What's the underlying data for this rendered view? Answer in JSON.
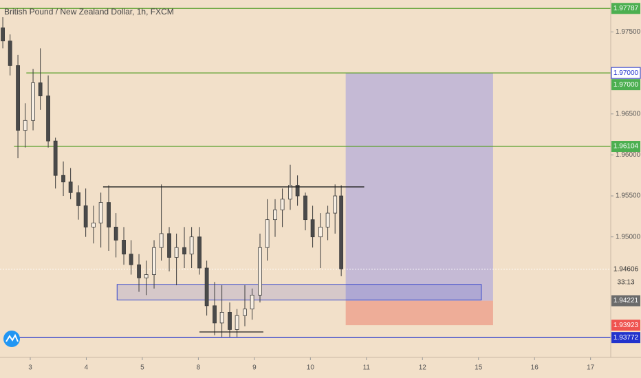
{
  "chart_data": {
    "type": "candlestick",
    "title": "British Pound / New Zealand Dollar, 1h, FXCM",
    "countdown": "33:13",
    "ylim": [
      1.9353,
      1.9789
    ],
    "xlim": [
      -0.54,
      10.36
    ],
    "yticks": [
      {
        "value": 1.975,
        "label": "1.97500"
      },
      {
        "value": 1.965,
        "label": "1.96500"
      },
      {
        "value": 1.96,
        "label": "1.96000"
      },
      {
        "value": 1.955,
        "label": "1.95500"
      },
      {
        "value": 1.95,
        "label": "1.95000"
      }
    ],
    "xticks": [
      {
        "value": 0,
        "label": "3"
      },
      {
        "value": 1,
        "label": "4"
      },
      {
        "value": 2,
        "label": "5"
      },
      {
        "value": 3,
        "label": "8"
      },
      {
        "value": 4,
        "label": "9"
      },
      {
        "value": 5,
        "label": "10"
      },
      {
        "value": 6,
        "label": "11"
      },
      {
        "value": 7,
        "label": "12"
      },
      {
        "value": 8,
        "label": "15"
      },
      {
        "value": 9,
        "label": "16"
      },
      {
        "value": 10,
        "label": "17"
      }
    ],
    "up_color": "#f7eee2",
    "down_color": "#4a4a4a",
    "x": [
      -0.49,
      -0.36,
      -0.22,
      -0.09,
      0.05,
      0.18,
      0.32,
      0.45,
      0.59,
      0.72,
      0.86,
      0.99,
      1.13,
      1.26,
      1.4,
      1.53,
      1.67,
      1.8,
      1.94,
      2.07,
      2.21,
      2.34,
      2.48,
      2.61,
      2.75,
      2.88,
      3.02,
      3.15,
      3.29,
      3.42,
      3.56,
      3.69,
      3.83,
      3.96,
      4.1,
      4.23,
      4.37,
      4.5,
      4.64,
      4.77,
      4.91,
      5.04,
      5.18,
      5.31,
      5.44,
      5.55
    ],
    "open": [
      1.9755,
      1.9739,
      1.9709,
      1.963,
      1.9642,
      1.9688,
      1.9672,
      1.9617,
      1.9575,
      1.9567,
      1.9554,
      1.9538,
      1.9512,
      1.9517,
      1.9542,
      1.9512,
      1.9496,
      1.9479,
      1.9466,
      1.945,
      1.9454,
      1.9487,
      1.9504,
      1.9475,
      1.9487,
      1.9479,
      1.95,
      1.9462,
      1.9416,
      1.9395,
      1.9408,
      1.9387,
      1.9404,
      1.9412,
      1.9429,
      1.9487,
      1.9521,
      1.9533,
      1.9546,
      1.9563,
      1.955,
      1.9521,
      1.95,
      1.9512,
      1.9529,
      1.955
    ],
    "high": [
      1.9768,
      1.9747,
      1.9722,
      1.9663,
      1.9705,
      1.973,
      1.9697,
      1.9621,
      1.9592,
      1.9584,
      1.9563,
      1.9559,
      1.9538,
      1.9554,
      1.9563,
      1.9529,
      1.9512,
      1.9496,
      1.9479,
      1.9471,
      1.9496,
      1.9564,
      1.9512,
      1.9504,
      1.9512,
      1.9512,
      1.9512,
      1.9471,
      1.9445,
      1.9441,
      1.942,
      1.9412,
      1.9441,
      1.9437,
      1.9504,
      1.9546,
      1.9546,
      1.9559,
      1.9588,
      1.9575,
      1.9554,
      1.9538,
      1.9529,
      1.9538,
      1.9564,
      1.9563
    ],
    "low": [
      1.973,
      1.9697,
      1.9596,
      1.9609,
      1.963,
      1.9655,
      1.9609,
      1.9559,
      1.955,
      1.9546,
      1.9521,
      1.95,
      1.9492,
      1.9487,
      1.9483,
      1.9475,
      1.9466,
      1.9454,
      1.9433,
      1.9429,
      1.9437,
      1.9471,
      1.9458,
      1.9441,
      1.9462,
      1.9462,
      1.9454,
      1.9404,
      1.938,
      1.9378,
      1.9378,
      1.9378,
      1.9391,
      1.9399,
      1.942,
      1.9471,
      1.95,
      1.9512,
      1.9533,
      1.9538,
      1.9508,
      1.9487,
      1.9462,
      1.9496,
      1.9504,
      1.9452
    ],
    "close": [
      1.9739,
      1.9709,
      1.963,
      1.9642,
      1.9688,
      1.9672,
      1.9617,
      1.9575,
      1.9567,
      1.9554,
      1.9538,
      1.9512,
      1.9517,
      1.9542,
      1.9512,
      1.9496,
      1.9479,
      1.9466,
      1.945,
      1.9454,
      1.9487,
      1.9504,
      1.9475,
      1.9487,
      1.9479,
      1.95,
      1.9462,
      1.9416,
      1.9395,
      1.9408,
      1.9387,
      1.9404,
      1.9412,
      1.9429,
      1.9487,
      1.9521,
      1.9533,
      1.9546,
      1.9563,
      1.955,
      1.9521,
      1.95,
      1.9512,
      1.9529,
      1.955,
      1.9461
    ],
    "horizontal_lines": [
      {
        "value": 1.97787,
        "from": -0.54,
        "color": "#5aa02c"
      },
      {
        "value": 1.97,
        "from": -0.07,
        "color": "#5aa02c"
      },
      {
        "value": 1.96104,
        "from": -0.29,
        "color": "#5aa02c"
      },
      {
        "value": 1.93772,
        "from": -0.42,
        "color": "#2233cc"
      }
    ],
    "current_price": 1.94606,
    "trend_lines": [
      {
        "value": 1.9561,
        "from": 1.3,
        "to": 5.96,
        "color": "#222222"
      },
      {
        "value": 1.9384,
        "from": 3.02,
        "to": 4.16,
        "color": "#222222"
      }
    ],
    "zone": {
      "from": 1.55,
      "to": 8.05,
      "top": 1.9442,
      "bottom": 1.9423,
      "color": "#3344cc"
    },
    "position": {
      "from": 5.63,
      "to": 8.26,
      "entry": 1.94221,
      "target": 1.97,
      "stop": 1.93923,
      "profit_color": "#b9b0d8",
      "loss_color": "#eda38f"
    },
    "price_labels": [
      {
        "value": 1.97787,
        "fill": "#4caf50",
        "text_color": "#ffffff"
      },
      {
        "value": 1.97,
        "label": "1.97000",
        "fill": "#ffffff",
        "text_color": "#2233cc"
      },
      {
        "value": 1.97,
        "label": "1.97000",
        "fill": "#4caf50",
        "text_color": "#ffffff"
      },
      {
        "value": 1.96104,
        "fill": "#4caf50",
        "text_color": "#ffffff"
      },
      {
        "value": 1.94606,
        "fill": "#f2e0c9",
        "text_color": "#333333"
      },
      {
        "value": 1.94221,
        "fill": "#6b6b6b",
        "text_color": "#ffffff"
      },
      {
        "value": 1.93923,
        "fill": "#ef5350",
        "text_color": "#ffffff"
      },
      {
        "value": 1.93772,
        "fill": "#2233cc",
        "text_color": "#ffffff"
      }
    ]
  }
}
